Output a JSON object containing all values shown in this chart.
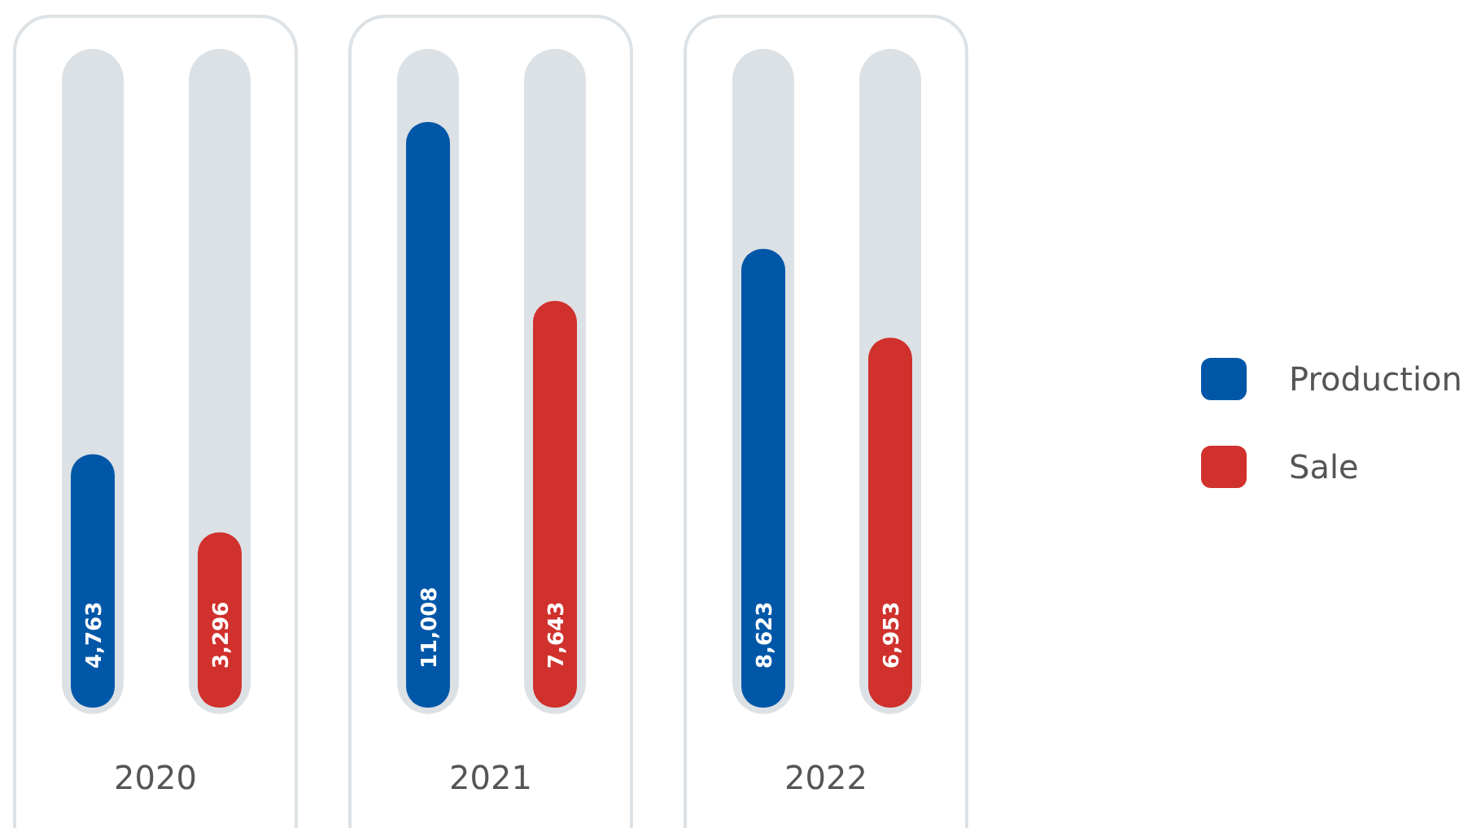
{
  "chart_data": {
    "type": "bar",
    "categories": [
      "2020",
      "2021",
      "2022"
    ],
    "series": [
      {
        "name": "Production",
        "color": "#0057a8",
        "values": [
          4763,
          11008,
          8623
        ],
        "value_labels": [
          "4,763",
          "11,008",
          "8,623"
        ]
      },
      {
        "name": "Sale",
        "color": "#d0312d",
        "values": [
          3296,
          7643,
          6953
        ],
        "value_labels": [
          "3,296",
          "7,643",
          "6,953"
        ]
      }
    ],
    "legend": "right"
  }
}
